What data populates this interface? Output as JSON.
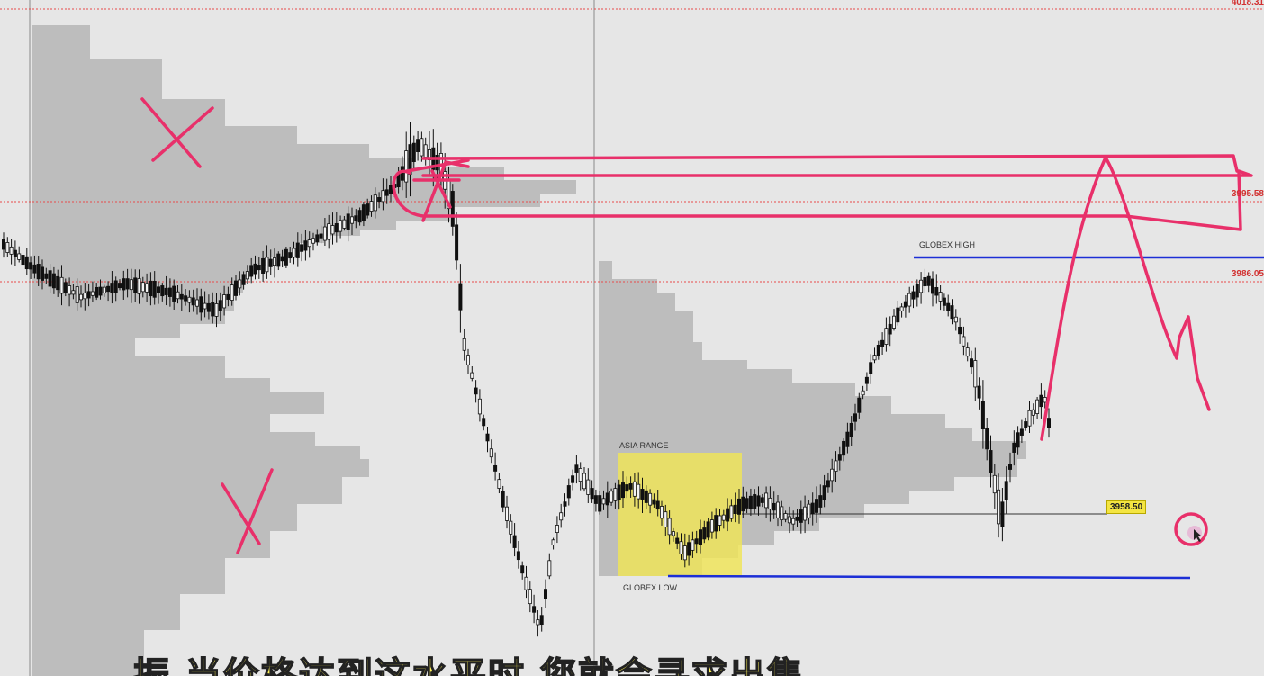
{
  "chart": {
    "price_labels": [
      "4018.31",
      "3995.58",
      "3986.05"
    ],
    "current_price_tag": "3958.50",
    "annotations": {
      "globex_high": "GLOBEX HIGH",
      "globex_low": "GLOBEX LOW",
      "asia_range": "ASIA RANGE"
    },
    "colors": {
      "candle": "#111111",
      "profile": "#bdbdbd",
      "background": "#e6e6e6",
      "drawing": "#e8306a",
      "globex_line": "#1c2fd6",
      "level_line": "#e84a4a",
      "asia_box": "#efe45a",
      "tag": "#f4e542"
    },
    "drawings": [
      "cross-mark-upper",
      "cross-mark-lower",
      "resistance-box",
      "projection-path",
      "cursor-circle"
    ]
  },
  "subtitle": {
    "text": "振 当价格达到这水平时 您就会寻求出售"
  }
}
